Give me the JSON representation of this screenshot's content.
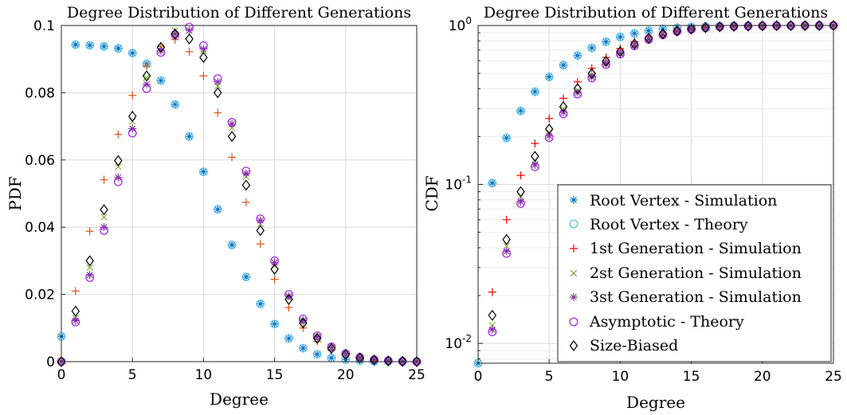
{
  "colors": {
    "root_sim": "#0072BD",
    "root_theory": "#4DBEEE",
    "gen1": "#FF0000",
    "gen1_pdf": "#D95319",
    "gen2": "#77AC30",
    "gen3": "#7E2F8E",
    "asym": "#A020F0",
    "size": "#000000",
    "grid": "#d9d9d9"
  },
  "chart_data": [
    {
      "type": "scatter",
      "title": "Degree Distribution of Different Generations",
      "xlabel": "Degree",
      "ylabel": "PDF",
      "xlim": [
        0,
        25
      ],
      "ylim": [
        0,
        0.1
      ],
      "yscale": "linear",
      "grid": true,
      "x_ticks": [
        "0",
        "5",
        "10",
        "15",
        "20",
        "25"
      ],
      "y_ticks": [
        "0",
        "0.02",
        "0.04",
        "0.06",
        "0.08",
        "0.1"
      ],
      "x": [
        0,
        1,
        2,
        3,
        4,
        5,
        6,
        7,
        8,
        9,
        10,
        11,
        12,
        13,
        14,
        15,
        16,
        17,
        18,
        19,
        20,
        21,
        22,
        23,
        24,
        25
      ],
      "series": [
        {
          "name": "Root Vertex - Simulation",
          "marker": "asterisk",
          "color_key": "root_sim",
          "values": [
            0.0075,
            0.0943,
            0.0941,
            0.0938,
            0.0932,
            0.0918,
            0.0886,
            0.0836,
            0.0765,
            0.067,
            0.0565,
            0.0453,
            0.0347,
            0.0252,
            0.0172,
            0.0112,
            0.0069,
            0.004,
            0.0022,
            0.0011,
            0.0006,
            0.0003,
            0.0001,
            0.0001,
            0.0,
            0.0
          ]
        },
        {
          "name": "Root Vertex - Theory",
          "marker": "circle",
          "color_key": "root_theory",
          "values": [
            0.0075,
            0.0943,
            0.0941,
            0.0938,
            0.0932,
            0.0918,
            0.0886,
            0.0836,
            0.0765,
            0.067,
            0.0565,
            0.0453,
            0.0347,
            0.0252,
            0.0172,
            0.0112,
            0.0069,
            0.004,
            0.0022,
            0.0011,
            0.0006,
            0.0003,
            0.0001,
            0.0001,
            0.0,
            0.0
          ]
        },
        {
          "name": "1st Generation - Simulation",
          "marker": "plus",
          "color_key": "gen1_pdf",
          "values": [
            0.0,
            0.021,
            0.0388,
            0.0541,
            0.0676,
            0.0792,
            0.0879,
            0.0937,
            0.0958,
            0.0922,
            0.085,
            0.074,
            0.0608,
            0.0474,
            0.035,
            0.0245,
            0.0161,
            0.01,
            0.006,
            0.0034,
            0.0018,
            0.0009,
            0.0004,
            0.0002,
            0.0001,
            0.0
          ]
        },
        {
          "name": "2st Generation - Simulation",
          "marker": "x",
          "color_key": "gen2",
          "values": [
            0.0,
            0.013,
            0.028,
            0.043,
            0.058,
            0.0715,
            0.0845,
            0.0935,
            0.0985,
            0.0985,
            0.0925,
            0.082,
            0.0695,
            0.055,
            0.041,
            0.0285,
            0.019,
            0.0118,
            0.007,
            0.004,
            0.0022,
            0.0011,
            0.0005,
            0.0002,
            0.0001,
            0.0
          ]
        },
        {
          "name": "3st Generation - Simulation",
          "marker": "asterisk",
          "color_key": "gen3",
          "values": [
            0.0,
            0.0122,
            0.0258,
            0.04,
            0.0548,
            0.0693,
            0.0825,
            0.0925,
            0.0975,
            0.0985,
            0.093,
            0.0832,
            0.0707,
            0.056,
            0.042,
            0.0295,
            0.0195,
            0.0123,
            0.0075,
            0.0042,
            0.0023,
            0.0012,
            0.0006,
            0.0003,
            0.0001,
            0.0
          ]
        },
        {
          "name": "Asymptotic - Theory",
          "marker": "circle",
          "color_key": "asym",
          "values": [
            0.0,
            0.0118,
            0.025,
            0.039,
            0.0535,
            0.068,
            0.0812,
            0.092,
            0.0972,
            0.0995,
            0.094,
            0.0842,
            0.0712,
            0.0567,
            0.0425,
            0.03,
            0.02,
            0.0127,
            0.0077,
            0.0044,
            0.0024,
            0.0013,
            0.0006,
            0.0003,
            0.0001,
            0.0
          ]
        },
        {
          "name": "Size-Biased",
          "marker": "diamond",
          "color_key": "size",
          "values": [
            0.0,
            0.015,
            0.03,
            0.0452,
            0.0598,
            0.073,
            0.085,
            0.0935,
            0.0975,
            0.096,
            0.0905,
            0.08,
            0.067,
            0.0525,
            0.039,
            0.0275,
            0.0185,
            0.0115,
            0.0069,
            0.0039,
            0.0021,
            0.0011,
            0.0005,
            0.0002,
            0.0001,
            0.0
          ]
        }
      ]
    },
    {
      "type": "scatter",
      "title": "Degree Distribution of Different Generations",
      "xlabel": "Degree",
      "ylabel": "CDF",
      "xlim": [
        0,
        25
      ],
      "ylim": [
        0.0075,
        1
      ],
      "yscale": "log",
      "grid": true,
      "legend_position": "bottom-right",
      "x_ticks": [
        "0",
        "5",
        "10",
        "15",
        "20",
        "25"
      ],
      "y_ticks": [
        {
          "value": 0.01,
          "base": "10",
          "exp": "-2"
        },
        {
          "value": 0.1,
          "base": "10",
          "exp": "-1"
        },
        {
          "value": 1,
          "base": "10",
          "exp": "0"
        }
      ],
      "x": [
        0,
        1,
        2,
        3,
        4,
        5,
        6,
        7,
        8,
        9,
        10,
        11,
        12,
        13,
        14,
        15,
        16,
        17,
        18,
        19,
        20,
        21,
        22,
        23,
        24,
        25
      ],
      "series": [
        {
          "name": "Root Vertex - Simulation",
          "marker": "asterisk",
          "color_key": "root_sim",
          "values": [
            0.0075,
            0.102,
            0.196,
            0.29,
            0.383,
            0.475,
            0.563,
            0.647,
            0.723,
            0.79,
            0.847,
            0.892,
            0.927,
            0.952,
            0.969,
            0.98,
            0.987,
            0.991,
            0.9935,
            0.995,
            0.996,
            0.997,
            0.998,
            0.999,
            0.999,
            1.0
          ]
        },
        {
          "name": "Root Vertex - Theory",
          "marker": "circle",
          "color_key": "root_theory",
          "values": [
            0.0075,
            0.102,
            0.196,
            0.29,
            0.383,
            0.475,
            0.563,
            0.647,
            0.723,
            0.79,
            0.847,
            0.892,
            0.927,
            0.952,
            0.969,
            0.98,
            0.987,
            0.991,
            0.9935,
            0.995,
            0.996,
            0.997,
            0.998,
            0.999,
            0.999,
            1.0
          ]
        },
        {
          "name": "1st Generation - Simulation",
          "marker": "plus",
          "color_key": "gen1",
          "values": [
            0.0,
            0.021,
            0.06,
            0.114,
            0.181,
            0.26,
            0.348,
            0.442,
            0.538,
            0.63,
            0.715,
            0.789,
            0.85,
            0.897,
            0.932,
            0.957,
            0.973,
            0.983,
            0.989,
            0.993,
            0.995,
            0.997,
            0.998,
            0.999,
            0.999,
            1.0
          ]
        },
        {
          "name": "2st Generation - Simulation",
          "marker": "x",
          "color_key": "gen2",
          "values": [
            0.0,
            0.013,
            0.041,
            0.084,
            0.142,
            0.213,
            0.298,
            0.391,
            0.49,
            0.589,
            0.681,
            0.763,
            0.833,
            0.888,
            0.929,
            0.958,
            0.977,
            0.989,
            0.996,
            1.0,
            1.0,
            1.0,
            1.0,
            1.0,
            1.0,
            1.0
          ]
        },
        {
          "name": "3st Generation - Simulation",
          "marker": "asterisk",
          "color_key": "gen3",
          "values": [
            0.0,
            0.0122,
            0.038,
            0.078,
            0.133,
            0.202,
            0.284,
            0.377,
            0.474,
            0.573,
            0.666,
            0.749,
            0.82,
            0.876,
            0.918,
            0.948,
            0.967,
            0.979,
            0.987,
            0.991,
            0.994,
            0.996,
            0.998,
            0.999,
            0.999,
            1.0
          ]
        },
        {
          "name": "Asymptotic - Theory",
          "marker": "circle",
          "color_key": "asym",
          "values": [
            0.0,
            0.0118,
            0.0368,
            0.0758,
            0.129,
            0.197,
            0.278,
            0.37,
            0.467,
            0.567,
            0.661,
            0.745,
            0.816,
            0.873,
            0.916,
            0.946,
            0.966,
            0.979,
            0.987,
            0.991,
            0.994,
            0.996,
            0.998,
            0.999,
            0.999,
            1.0
          ]
        },
        {
          "name": "Size-Biased",
          "marker": "diamond",
          "color_key": "size",
          "values": [
            0.0,
            0.015,
            0.045,
            0.09,
            0.15,
            0.223,
            0.308,
            0.401,
            0.499,
            0.595,
            0.685,
            0.765,
            0.832,
            0.885,
            0.924,
            0.951,
            0.97,
            0.981,
            0.988,
            0.992,
            0.995,
            0.997,
            0.998,
            0.999,
            0.999,
            1.0
          ]
        }
      ]
    }
  ]
}
